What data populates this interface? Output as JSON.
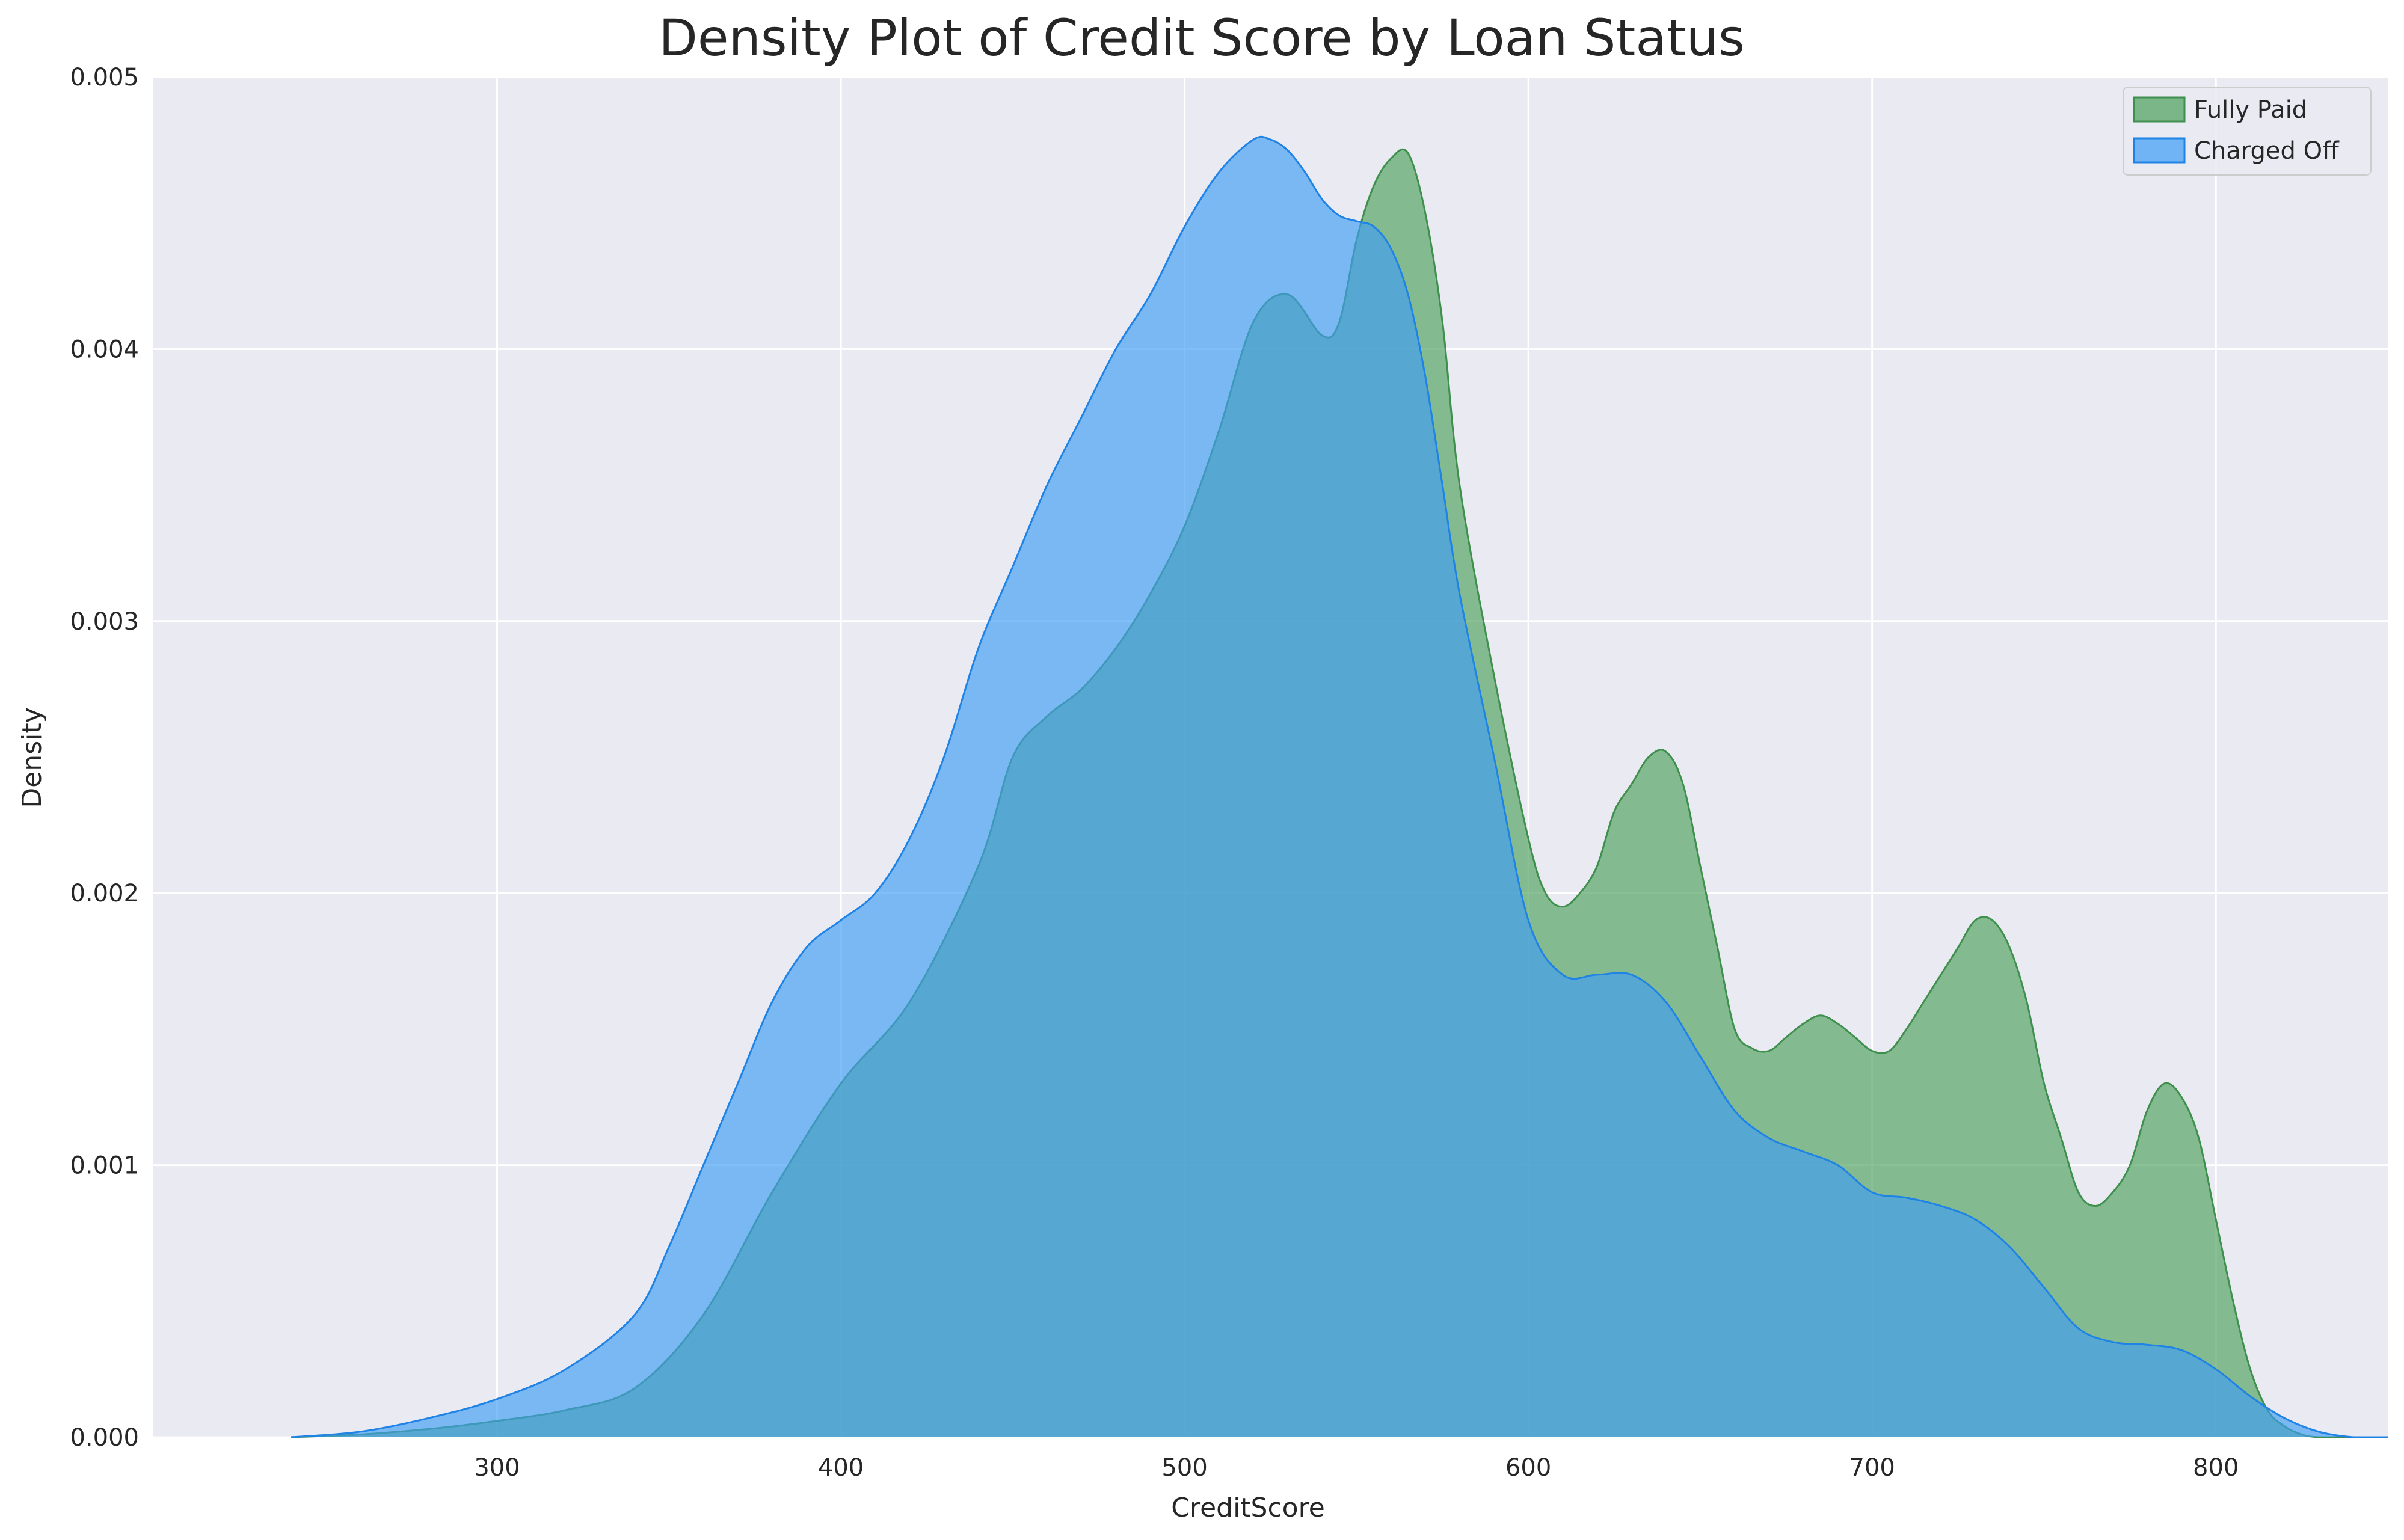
{
  "chart_data": {
    "type": "area",
    "title": "Density Plot of Credit Score by Loan Status",
    "xlabel": "CreditScore",
    "ylabel": "Density",
    "xlim": [
      200,
      850
    ],
    "ylim": [
      0,
      0.005
    ],
    "xticks": [
      300,
      400,
      500,
      600,
      700,
      800
    ],
    "xtick_labels": [
      "300",
      "400",
      "500",
      "600",
      "700",
      "800"
    ],
    "yticks": [
      0,
      0.001,
      0.002,
      0.003,
      0.004,
      0.005
    ],
    "ytick_labels": [
      "0.000",
      "0.001",
      "0.002",
      "0.003",
      "0.004",
      "0.005"
    ],
    "grid": true,
    "legend_position": "top-right",
    "background_color": "#eaeaf2",
    "series": [
      {
        "name": "Fully Paid",
        "fill_color": "#4c9f5a",
        "line_color": "#3f8f4d",
        "x": [
          240,
          260,
          280,
          300,
          320,
          340,
          360,
          380,
          400,
          420,
          440,
          450,
          460,
          470,
          480,
          490,
          500,
          510,
          520,
          530,
          540,
          545,
          550,
          555,
          560,
          565,
          570,
          575,
          580,
          590,
          600,
          605,
          610,
          615,
          620,
          625,
          630,
          635,
          640,
          645,
          650,
          655,
          660,
          665,
          670,
          675,
          680,
          685,
          690,
          695,
          700,
          705,
          710,
          715,
          720,
          725,
          730,
          735,
          740,
          745,
          750,
          755,
          760,
          765,
          770,
          775,
          780,
          785,
          790,
          795,
          800,
          805,
          810,
          815,
          820,
          825,
          830,
          840,
          850
        ],
        "y": [
          0.0,
          1e-05,
          3e-05,
          6e-05,
          0.0001,
          0.00018,
          0.00045,
          0.0009,
          0.0013,
          0.0016,
          0.0021,
          0.0025,
          0.00265,
          0.00275,
          0.0029,
          0.0031,
          0.00335,
          0.0037,
          0.0041,
          0.0042,
          0.00405,
          0.0041,
          0.0044,
          0.0046,
          0.0047,
          0.00472,
          0.0045,
          0.0041,
          0.0035,
          0.0028,
          0.0022,
          0.002,
          0.00195,
          0.002,
          0.0021,
          0.0023,
          0.0024,
          0.0025,
          0.00252,
          0.0024,
          0.0021,
          0.0018,
          0.0015,
          0.00143,
          0.00142,
          0.00147,
          0.00152,
          0.00155,
          0.00152,
          0.00147,
          0.00142,
          0.00142,
          0.0015,
          0.0016,
          0.0017,
          0.0018,
          0.0019,
          0.0019,
          0.0018,
          0.0016,
          0.0013,
          0.0011,
          0.0009,
          0.00085,
          0.0009,
          0.001,
          0.0012,
          0.0013,
          0.00125,
          0.0011,
          0.0008,
          0.0005,
          0.00025,
          0.0001,
          4e-05,
          1e-05,
          0.0,
          0.0,
          0.0
        ]
      },
      {
        "name": "Charged Off",
        "fill_color": "#3d9df5",
        "line_color": "#1f83e6",
        "x": [
          240,
          260,
          280,
          300,
          320,
          340,
          350,
          360,
          370,
          380,
          390,
          400,
          410,
          420,
          430,
          440,
          450,
          460,
          470,
          480,
          490,
          500,
          510,
          520,
          525,
          530,
          535,
          540,
          545,
          550,
          555,
          560,
          565,
          570,
          575,
          580,
          590,
          600,
          610,
          620,
          630,
          640,
          650,
          660,
          670,
          680,
          690,
          700,
          710,
          720,
          730,
          740,
          750,
          760,
          770,
          780,
          790,
          800,
          810,
          820,
          830,
          840,
          850
        ],
        "y": [
          0.0,
          2e-05,
          7e-05,
          0.00014,
          0.00025,
          0.00045,
          0.0007,
          0.001,
          0.0013,
          0.0016,
          0.0018,
          0.0019,
          0.002,
          0.0022,
          0.0025,
          0.0029,
          0.0032,
          0.0035,
          0.00375,
          0.004,
          0.0042,
          0.00445,
          0.00465,
          0.00477,
          0.00477,
          0.00473,
          0.00465,
          0.00455,
          0.00449,
          0.00447,
          0.00445,
          0.00437,
          0.0042,
          0.0039,
          0.0035,
          0.0031,
          0.0025,
          0.0019,
          0.0017,
          0.0017,
          0.0017,
          0.0016,
          0.0014,
          0.0012,
          0.0011,
          0.00105,
          0.001,
          0.0009,
          0.00088,
          0.00085,
          0.0008,
          0.0007,
          0.00055,
          0.0004,
          0.00035,
          0.00034,
          0.00032,
          0.00025,
          0.00015,
          7e-05,
          2e-05,
          0.0,
          0.0
        ]
      }
    ]
  }
}
